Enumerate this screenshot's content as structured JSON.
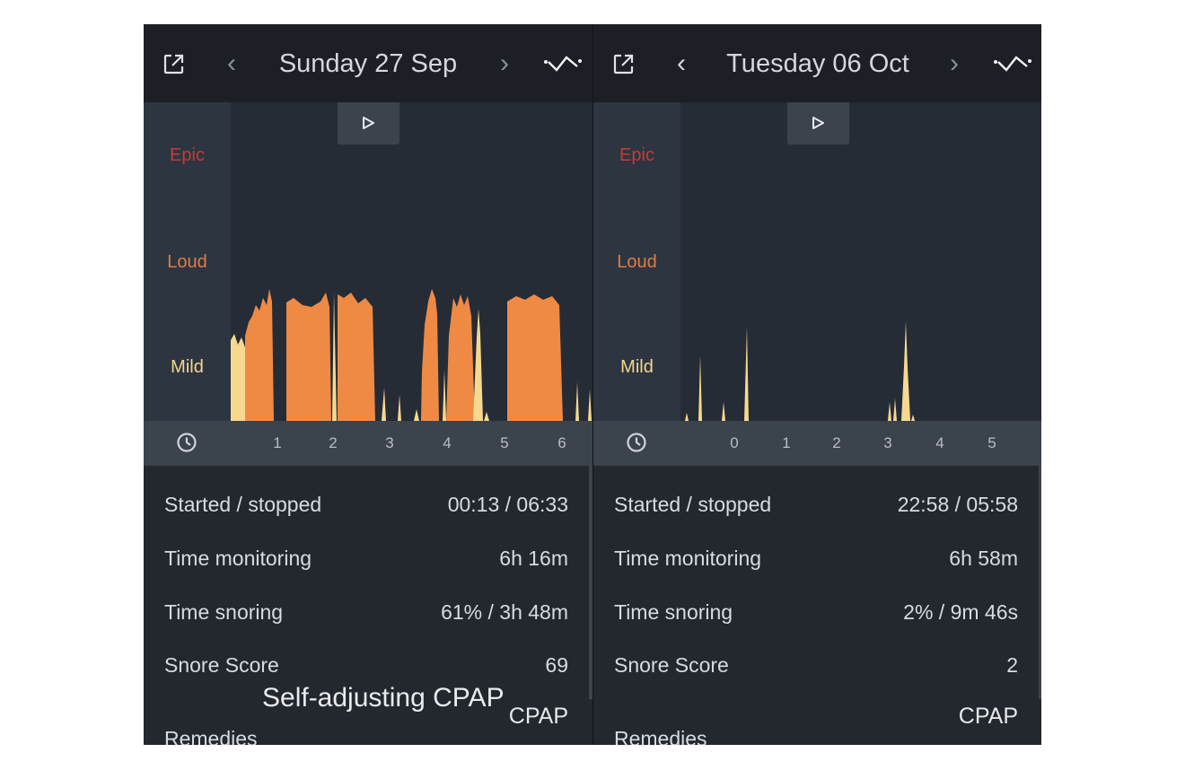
{
  "panels": [
    {
      "id": "left",
      "date": "Sunday 27 Sep",
      "levels": {
        "epic": "Epic",
        "loud": "Loud",
        "mild": "Mild"
      },
      "time_ticks": [
        "1",
        "2",
        "3",
        "4",
        "5",
        "6"
      ],
      "stats": {
        "started_label": "Started / stopped",
        "started_value": "00:13 / 06:33",
        "monitoring_label": "Time monitoring",
        "monitoring_value": "6h 16m",
        "snoring_label": "Time snoring",
        "snoring_value": "61% / 3h 48m",
        "score_label": "Snore Score",
        "score_value": "69"
      },
      "remedies_label": "Remedies",
      "remedy_value": "CPAP",
      "annotation": "Self-adjusting CPAP"
    },
    {
      "id": "right",
      "date": "Tuesday 06 Oct",
      "levels": {
        "epic": "Epic",
        "loud": "Loud",
        "mild": "Mild"
      },
      "time_ticks": [
        "0",
        "1",
        "2",
        "3",
        "4",
        "5"
      ],
      "stats": {
        "started_label": "Started / stopped",
        "started_value": "22:58 / 05:58",
        "monitoring_label": "Time monitoring",
        "monitoring_value": "6h 58m",
        "snoring_label": "Time snoring",
        "snoring_value": "2% / 9m 46s",
        "score_label": "Snore Score",
        "score_value": "2"
      },
      "remedies_label": "Remedies",
      "remedy_value": "CPAP"
    }
  ],
  "colors": {
    "header_bg": "#1c1f25",
    "chart_bg": "#262c36",
    "label_column_bg": "#2d3541",
    "axis_bg": "#3b434d",
    "stats_bg": "#23272e",
    "epic": "#c73b36",
    "loud": "#e27c40",
    "mild": "#f4d68c",
    "snore_fill": "#ef8a45"
  },
  "icons": {
    "share": "share-icon",
    "prev": "chevron-left-icon",
    "next": "chevron-right-icon",
    "trend": "trend-line-icon",
    "play": "play-icon",
    "clock": "clock-icon"
  }
}
